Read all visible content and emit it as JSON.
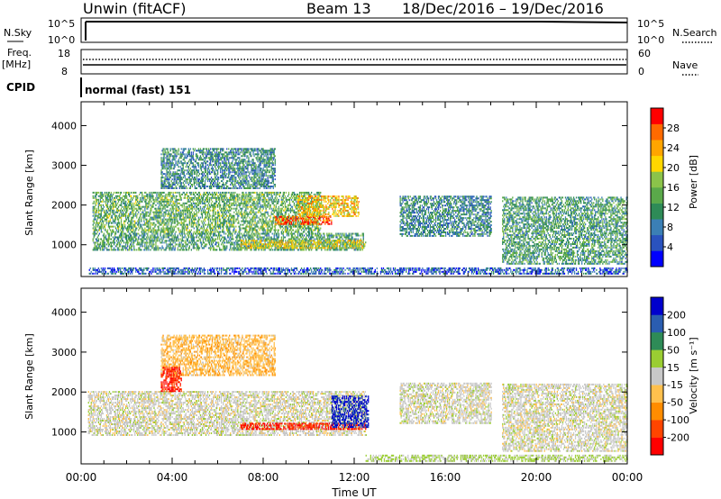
{
  "header": {
    "title": "Unwin (fitACF)",
    "beam": "Beam 13",
    "date_range": "18/Dec/2016 – 19/Dec/2016"
  },
  "nsky_panel": {
    "left_label": "N.Sky",
    "right_label": "N.Search",
    "left_ticks": [
      "10^5",
      "10^0"
    ],
    "right_ticks": [
      "10^5",
      "10^0"
    ]
  },
  "freq_panel": {
    "left_label_top": "Freq.",
    "left_label_bottom": "[MHz]",
    "right_label": "Nave",
    "left_ticks": [
      "18",
      "8"
    ],
    "right_ticks": [
      "60",
      "0"
    ]
  },
  "cpid": {
    "label": "CPID",
    "value": "normal (fast) 151"
  },
  "chart_data": [
    {
      "type": "heatmap",
      "name": "power",
      "ylabel": "Slant Range [km]",
      "yticks": [
        "4000",
        "3000",
        "2000",
        "1000"
      ],
      "ylim": [
        200,
        4600
      ],
      "xlim": [
        0,
        24
      ],
      "colorbar": {
        "label": "Power [dB]",
        "ticks": [
          "28",
          "24",
          "20",
          "16",
          "12",
          "8",
          "4"
        ],
        "colors": [
          "#0000ff",
          "#2a52be",
          "#3b7fb5",
          "#2e8b57",
          "#5aa94a",
          "#8bc34a",
          "#ffd700",
          "#ffa500",
          "#ff6a00",
          "#ff0000"
        ]
      },
      "regions": [
        {
          "t": [
            0.3,
            12.5
          ],
          "r": [
            250,
            420
          ],
          "value": 6
        },
        {
          "t": [
            0.5,
            12.4
          ],
          "r": [
            850,
            1300
          ],
          "value": 12
        },
        {
          "t": [
            0.5,
            10.5
          ],
          "r": [
            1300,
            2300
          ],
          "value": 14
        },
        {
          "t": [
            3.5,
            8.5
          ],
          "r": [
            2400,
            3400
          ],
          "value": 10
        },
        {
          "t": [
            7.0,
            12.5
          ],
          "r": [
            900,
            1100
          ],
          "value": 20
        },
        {
          "t": [
            8.5,
            11.0
          ],
          "r": [
            1500,
            1700
          ],
          "value": 28
        },
        {
          "t": [
            9.5,
            12.2
          ],
          "r": [
            1700,
            2200
          ],
          "value": 22
        },
        {
          "t": [
            14.0,
            18.0
          ],
          "r": [
            1200,
            2200
          ],
          "value": 10
        },
        {
          "t": [
            18.5,
            24.0
          ],
          "r": [
            500,
            2200
          ],
          "value": 12
        },
        {
          "t": [
            12.5,
            24.0
          ],
          "r": [
            250,
            400
          ],
          "value": 6
        }
      ]
    },
    {
      "type": "heatmap",
      "name": "velocity",
      "ylabel": "Slant Range [km]",
      "yticks": [
        "4000",
        "3000",
        "2000",
        "1000"
      ],
      "ylim": [
        200,
        4600
      ],
      "xlim": [
        0,
        24
      ],
      "xticks": [
        "00:00",
        "04:00",
        "08:00",
        "12:00",
        "16:00",
        "20:00",
        "00:00"
      ],
      "xlabel": "Time UT",
      "colorbar": {
        "label": "Velocity [m s⁻¹]",
        "ticks": [
          "200",
          "100",
          "50",
          "15",
          "-15",
          "-50",
          "-100",
          "-200"
        ],
        "colors": [
          "#ff0000",
          "#ff4500",
          "#ff8c00",
          "#ffc04d",
          "#c8c8c8",
          "#9acd32",
          "#2e8b57",
          "#2a5db0",
          "#0000cd"
        ]
      },
      "regions": [
        {
          "t": [
            0.3,
            12.5
          ],
          "r": [
            900,
            2000
          ],
          "value": 0
        },
        {
          "t": [
            3.5,
            8.5
          ],
          "r": [
            2400,
            3400
          ],
          "value": -60
        },
        {
          "t": [
            3.5,
            4.4
          ],
          "r": [
            2000,
            2600
          ],
          "value": -200
        },
        {
          "t": [
            7.0,
            12.5
          ],
          "r": [
            1050,
            1200
          ],
          "value": -200
        },
        {
          "t": [
            11.0,
            12.6
          ],
          "r": [
            1100,
            1900
          ],
          "value": 200
        },
        {
          "t": [
            14.0,
            18.0
          ],
          "r": [
            1200,
            2200
          ],
          "value": 0
        },
        {
          "t": [
            18.5,
            24.0
          ],
          "r": [
            500,
            2200
          ],
          "value": 0
        },
        {
          "t": [
            12.5,
            24.0
          ],
          "r": [
            250,
            420
          ],
          "value": 40
        }
      ]
    }
  ]
}
